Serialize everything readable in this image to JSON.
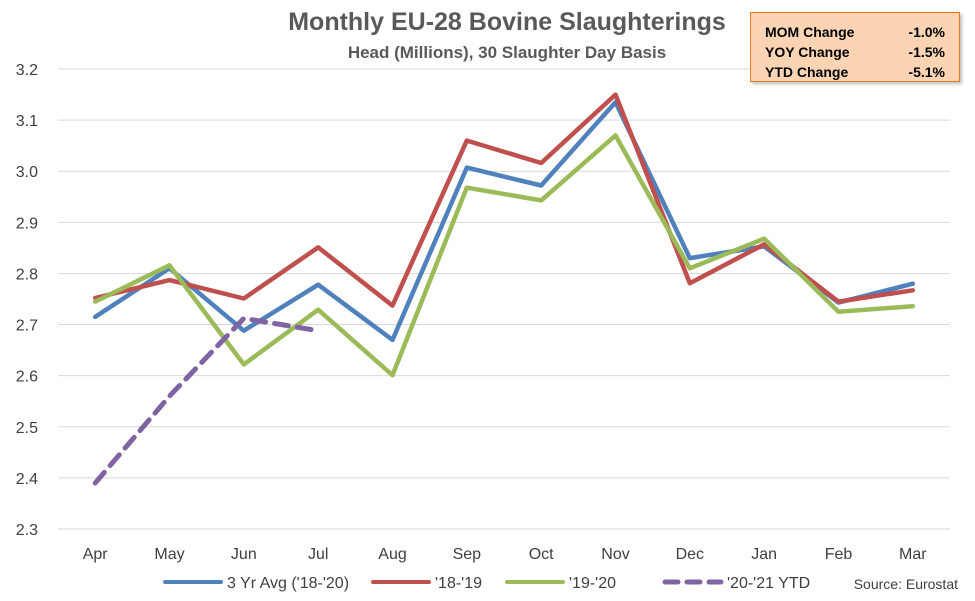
{
  "chart_data": {
    "type": "line",
    "title": "Monthly EU-28 Bovine Slaughterings",
    "subtitle": "Head (Millions), 30 Slaughter Day Basis",
    "categories": [
      "Apr",
      "May",
      "Jun",
      "Jul",
      "Aug",
      "Sep",
      "Oct",
      "Nov",
      "Dec",
      "Jan",
      "Feb",
      "Mar"
    ],
    "ylim": [
      2.3,
      3.2
    ],
    "yticks": [
      "2.3",
      "2.4",
      "2.5",
      "2.6",
      "2.7",
      "2.8",
      "2.9",
      "3.0",
      "3.1",
      "3.2"
    ],
    "series": [
      {
        "name": "3 Yr Avg ('18-'20)",
        "color": "#4f81bd",
        "dashed": false,
        "values": [
          2.715,
          2.81,
          2.688,
          2.778,
          2.67,
          3.007,
          2.972,
          3.135,
          2.83,
          2.853,
          2.743,
          2.78
        ]
      },
      {
        "name": "'18-'19",
        "color": "#c0504d",
        "dashed": false,
        "values": [
          2.752,
          2.787,
          2.751,
          2.851,
          2.737,
          3.06,
          3.016,
          3.15,
          2.781,
          2.857,
          2.745,
          2.767
        ]
      },
      {
        "name": "'19-'20",
        "color": "#9bbb59",
        "dashed": false,
        "values": [
          2.745,
          2.816,
          2.622,
          2.729,
          2.601,
          2.968,
          2.943,
          3.07,
          2.81,
          2.868,
          2.725,
          2.736
        ]
      },
      {
        "name": "'20-'21 YTD",
        "color": "#8064a2",
        "dashed": true,
        "values": [
          2.39,
          2.56,
          2.712,
          2.688,
          null,
          null,
          null,
          null,
          null,
          null,
          null,
          null
        ]
      }
    ],
    "grid": true,
    "legend_position": "bottom"
  },
  "stats": [
    {
      "label": "MOM Change",
      "value": "-1.0%"
    },
    {
      "label": "YOY Change",
      "value": "-1.5%"
    },
    {
      "label": "YTD Change",
      "value": "-5.1%"
    }
  ],
  "source": "Source: Eurostat"
}
